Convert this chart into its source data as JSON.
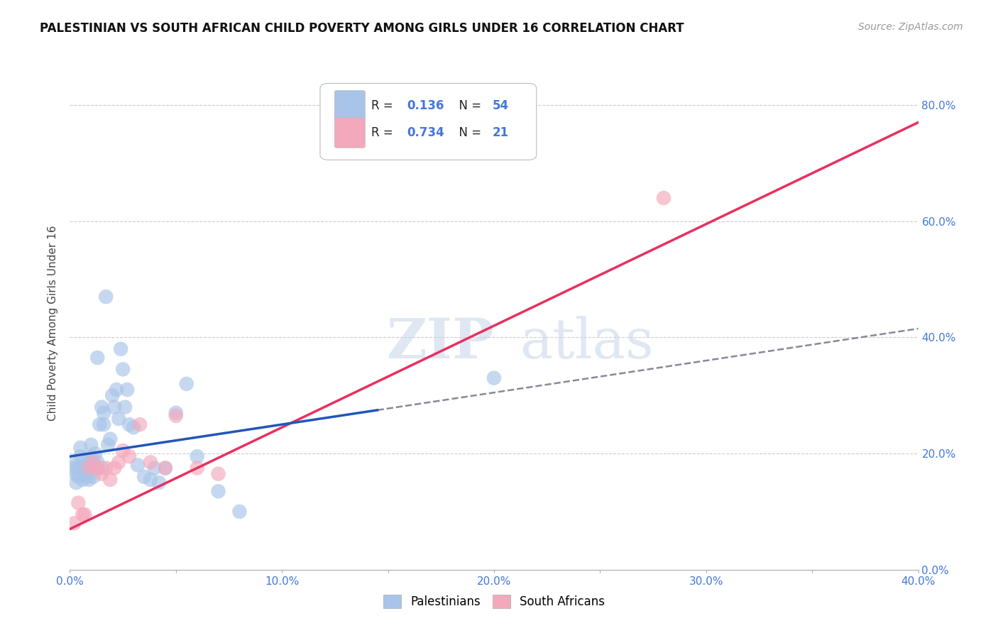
{
  "title": "PALESTINIAN VS SOUTH AFRICAN CHILD POVERTY AMONG GIRLS UNDER 16 CORRELATION CHART",
  "source": "Source: ZipAtlas.com",
  "ylabel": "Child Poverty Among Girls Under 16",
  "xlim": [
    0.0,
    0.4
  ],
  "ylim": [
    0.0,
    0.85
  ],
  "xtick_labels": [
    "0.0%",
    "",
    "10.0%",
    "",
    "20.0%",
    "",
    "30.0%",
    "",
    "40.0%"
  ],
  "xtick_vals": [
    0.0,
    0.05,
    0.1,
    0.15,
    0.2,
    0.25,
    0.3,
    0.35,
    0.4
  ],
  "ytick_vals": [
    0.0,
    0.2,
    0.4,
    0.6,
    0.8
  ],
  "ytick_labels": [
    "0.0%",
    "20.0%",
    "40.0%",
    "60.0%",
    "80.0%"
  ],
  "background_color": "#ffffff",
  "grid_color": "#cccccc",
  "pal_color": "#a8c4e8",
  "sa_color": "#f4a8bc",
  "pal_line_color": "#2255bb",
  "sa_line_color": "#e83060",
  "legend_r_pal": "0.136",
  "legend_n_pal": "54",
  "legend_r_sa": "0.734",
  "legend_n_sa": "21",
  "tick_color": "#4477dd",
  "pal_x": [
    0.001,
    0.002,
    0.003,
    0.003,
    0.004,
    0.004,
    0.005,
    0.005,
    0.006,
    0.006,
    0.007,
    0.007,
    0.008,
    0.008,
    0.009,
    0.009,
    0.01,
    0.01,
    0.011,
    0.011,
    0.012,
    0.012,
    0.013,
    0.013,
    0.014,
    0.015,
    0.015,
    0.016,
    0.016,
    0.017,
    0.018,
    0.019,
    0.02,
    0.021,
    0.022,
    0.023,
    0.024,
    0.025,
    0.026,
    0.027,
    0.028,
    0.03,
    0.032,
    0.035,
    0.038,
    0.04,
    0.042,
    0.045,
    0.05,
    0.055,
    0.06,
    0.07,
    0.08,
    0.2
  ],
  "pal_y": [
    0.175,
    0.185,
    0.15,
    0.165,
    0.16,
    0.175,
    0.195,
    0.21,
    0.155,
    0.175,
    0.17,
    0.185,
    0.16,
    0.18,
    0.155,
    0.175,
    0.195,
    0.215,
    0.16,
    0.185,
    0.175,
    0.2,
    0.365,
    0.185,
    0.25,
    0.28,
    0.175,
    0.27,
    0.25,
    0.47,
    0.215,
    0.225,
    0.3,
    0.28,
    0.31,
    0.26,
    0.38,
    0.345,
    0.28,
    0.31,
    0.25,
    0.245,
    0.18,
    0.16,
    0.155,
    0.175,
    0.15,
    0.175,
    0.27,
    0.32,
    0.195,
    0.135,
    0.1,
    0.33
  ],
  "sa_x": [
    0.002,
    0.004,
    0.006,
    0.007,
    0.009,
    0.011,
    0.013,
    0.015,
    0.017,
    0.019,
    0.021,
    0.023,
    0.025,
    0.028,
    0.033,
    0.038,
    0.045,
    0.05,
    0.06,
    0.07,
    0.28
  ],
  "sa_y": [
    0.08,
    0.115,
    0.095,
    0.095,
    0.175,
    0.185,
    0.175,
    0.165,
    0.175,
    0.155,
    0.175,
    0.185,
    0.205,
    0.195,
    0.25,
    0.185,
    0.175,
    0.265,
    0.175,
    0.165,
    0.64
  ],
  "pal_line_x0": 0.0,
  "pal_line_x_solid_end": 0.145,
  "pal_line_x1": 0.4,
  "pal_intercept": 0.195,
  "pal_slope": 0.55,
  "sa_line_x0": 0.0,
  "sa_line_x1": 0.4,
  "sa_intercept": 0.07,
  "sa_slope": 1.75
}
